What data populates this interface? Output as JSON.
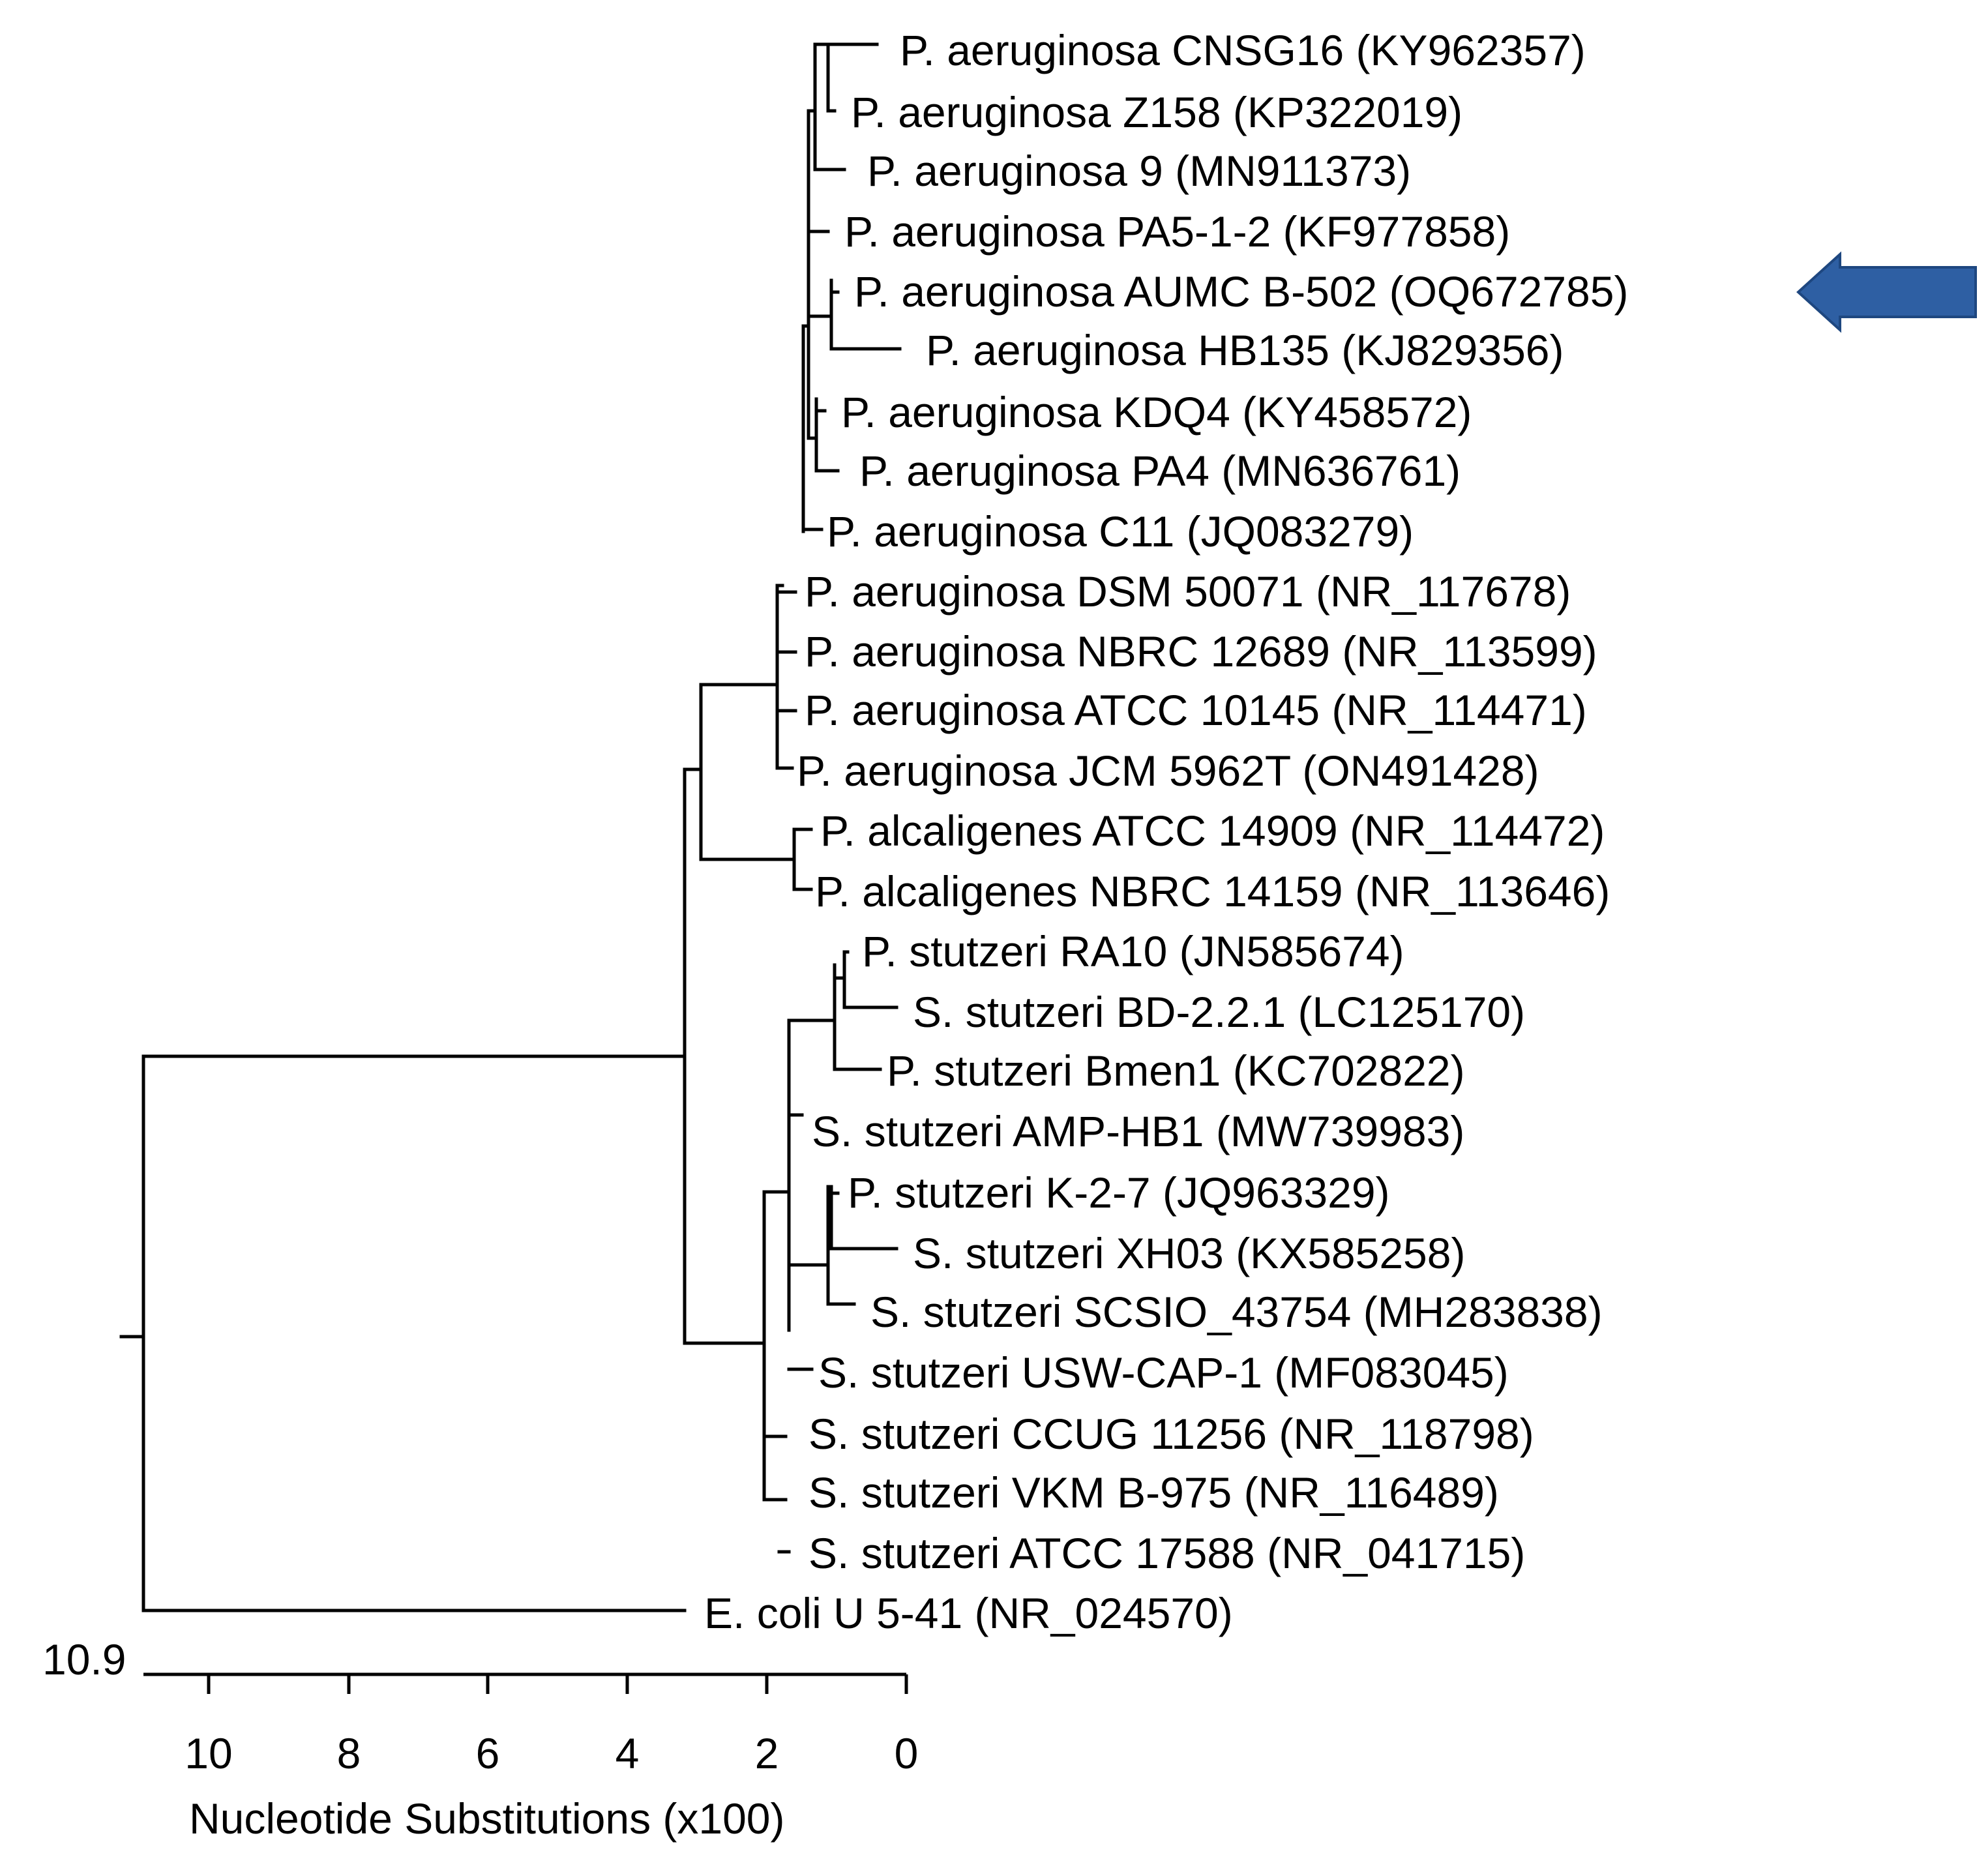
{
  "tree": {
    "scale_label": "10.9",
    "axis_title": "Nucleotide Substitutions (x100)",
    "axis_ticks": [
      "10",
      "8",
      "6",
      "4",
      "2",
      "0"
    ],
    "marker": {
      "type": "arrow",
      "points_to": "P. aeruginosa AUMC B-502 (OQ672785)",
      "color": "#2E5FA3"
    },
    "leaves": [
      "P. aeruginosa CNSG16 (KY962357)",
      "P. aeruginosa Z158 (KP322019)",
      "P. aeruginosa 9 (MN911373)",
      "P. aeruginosa PA5-1-2 (KF977858)",
      "P. aeruginosa AUMC B-502 (OQ672785)",
      "P. aeruginosa HB135 (KJ829356)",
      "P. aeruginosa KDQ4 (KY458572)",
      "P. aeruginosa PA4 (MN636761)",
      "P. aeruginosa C11 (JQ083279)",
      "P. aeruginosa DSM 50071 (NR_117678)",
      "P. aeruginosa NBRC 12689 (NR_113599)",
      "P. aeruginosa ATCC 10145 (NR_114471)",
      "P. aeruginosa JCM 5962T (ON491428)",
      "P. alcaligenes ATCC 14909 (NR_114472)",
      "P. alcaligenes NBRC 14159 (NR_113646)",
      "P. stutzeri RA10 (JN585674)",
      "S. stutzeri BD-2.2.1 (LC125170)",
      "P. stutzeri Bmen1 (KC702822)",
      "S. stutzeri AMP-HB1 (MW739983)",
      "P. stutzeri K-2-7 (JQ963329)",
      "S. stutzeri XH03 (KX585258)",
      "S. stutzeri SCSIO_43754 (MH283838)",
      "S. stutzeri USW-CAP-1 (MF083045)",
      "S. stutzeri CCUG 11256 (NR_118798)",
      "S. stutzeri VKM B-975 (NR_116489)",
      "S. stutzeri ATCC 17588 (NR_041715)",
      "E. coli U 5-41 (NR_024570)"
    ]
  }
}
